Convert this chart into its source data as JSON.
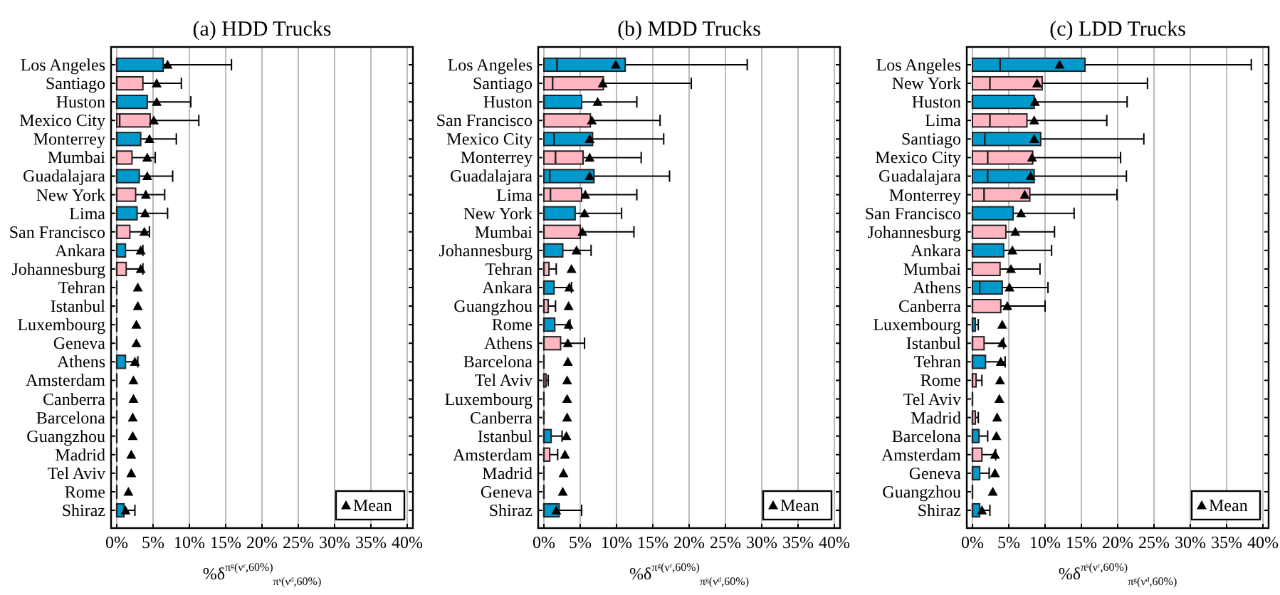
{
  "chart_data": [
    {
      "type": "box",
      "title": "(a) HDD Trucks",
      "orientation": "horizontal",
      "xlabel": "%δ$^{πᵍ(νʳ,60%)}$$_{πˢ(νᵈ,60%)}$",
      "xlim": [
        0,
        40
      ],
      "xticks": [
        {
          "value": 0,
          "label": "0%"
        },
        {
          "value": 5,
          "label": "5%"
        },
        {
          "value": 10,
          "label": "10%"
        },
        {
          "value": 15,
          "label": "15%"
        },
        {
          "value": 20,
          "label": "20%"
        },
        {
          "value": 25,
          "label": "25%"
        },
        {
          "value": 30,
          "label": "30%"
        },
        {
          "value": 35,
          "label": "35%"
        },
        {
          "value": 40,
          "label": "40%"
        }
      ],
      "grid": "x",
      "legend": "bottom right",
      "categories": [
        "Los Angeles",
        "Santiago",
        "Huston",
        "Mexico City",
        "Monterrey",
        "Mumbai",
        "Guadalajara",
        "New York",
        "Lima",
        "San Francisco",
        "Ankara",
        "Johannesburg",
        "Tehran",
        "Istanbul",
        "Luxembourg",
        "Geneva",
        "Athens",
        "Amsterdam",
        "Canberra",
        "Barcelona",
        "Guangzhou",
        "Madrid",
        "Tel Aviv",
        "Rome",
        "Shiraz"
      ],
      "series": [
        {
          "type": "box",
          "colors": [
            "#0099cc",
            "#ffb6c1",
            "#0099cc",
            "#ffb6c1",
            "#0099cc",
            "#ffb6c1",
            "#0099cc",
            "#ffb6c1",
            "#0099cc",
            "#ffb6c1",
            "#0099cc",
            "#ffb6c1",
            null,
            null,
            null,
            null,
            "#0099cc",
            null,
            null,
            null,
            null,
            null,
            null,
            null,
            "#0099cc"
          ],
          "boxes": [
            {
              "low": 0,
              "q1": 0,
              "median": 0,
              "q3": 6.4,
              "high": 15.8
            },
            {
              "low": 0,
              "q1": 0,
              "median": 0,
              "q3": 3.6,
              "high": 8.9
            },
            {
              "low": 0,
              "q1": 0,
              "median": 0,
              "q3": 4.2,
              "high": 10.2
            },
            {
              "low": 0,
              "q1": 0,
              "median": 0.4,
              "q3": 4.6,
              "high": 11.3
            },
            {
              "low": 0,
              "q1": 0,
              "median": 0,
              "q3": 3.3,
              "high": 8.2
            },
            {
              "low": 0,
              "q1": 0,
              "median": 0,
              "q3": 2.1,
              "high": 5.3
            },
            {
              "low": 0,
              "q1": 0,
              "median": 0,
              "q3": 3.1,
              "high": 7.7
            },
            {
              "low": 0,
              "q1": 0,
              "median": 0,
              "q3": 2.6,
              "high": 6.6
            },
            {
              "low": 0,
              "q1": 0,
              "median": 0,
              "q3": 2.8,
              "high": 7.0
            },
            {
              "low": 0,
              "q1": 0,
              "median": 0,
              "q3": 1.8,
              "high": 4.5
            },
            {
              "low": 0,
              "q1": 0,
              "median": 0,
              "q3": 1.2,
              "high": 3.6
            },
            {
              "low": 0,
              "q1": 0,
              "median": 0,
              "q3": 1.3,
              "high": 3.6
            },
            {
              "low": 0,
              "q1": 0,
              "median": 0,
              "q3": 0,
              "high": 0
            },
            {
              "low": 0,
              "q1": 0,
              "median": 0,
              "q3": 0,
              "high": 0
            },
            {
              "low": 0,
              "q1": 0,
              "median": 0,
              "q3": 0,
              "high": 0
            },
            {
              "low": 0,
              "q1": 0,
              "median": 0,
              "q3": 0,
              "high": 0
            },
            {
              "low": 0,
              "q1": 0,
              "median": 0,
              "q3": 1.2,
              "high": 2.9
            },
            {
              "low": 0,
              "q1": 0,
              "median": 0,
              "q3": 0,
              "high": 0
            },
            {
              "low": 0,
              "q1": 0,
              "median": 0,
              "q3": 0,
              "high": 0
            },
            {
              "low": 0,
              "q1": 0,
              "median": 0,
              "q3": 0,
              "high": 0
            },
            {
              "low": 0,
              "q1": 0,
              "median": 0,
              "q3": 0,
              "high": 0
            },
            {
              "low": 0,
              "q1": 0,
              "median": 0,
              "q3": 0,
              "high": 0
            },
            {
              "low": 0,
              "q1": 0,
              "median": 0,
              "q3": 0,
              "high": 0
            },
            {
              "low": 0,
              "q1": 0,
              "median": 0,
              "q3": 0,
              "high": 0
            },
            {
              "low": 0,
              "q1": 0,
              "median": 0,
              "q3": 1.0,
              "high": 2.5
            }
          ]
        },
        {
          "type": "scatter",
          "name": "Mean",
          "color": "#000000",
          "marker": "triangle",
          "values": [
            7.0,
            5.5,
            5.5,
            5.1,
            4.5,
            4.2,
            4.2,
            4.0,
            3.9,
            3.8,
            3.3,
            3.3,
            2.9,
            2.9,
            2.7,
            2.7,
            2.5,
            2.3,
            2.3,
            2.2,
            2.2,
            2.0,
            2.0,
            1.6,
            1.2
          ]
        }
      ]
    },
    {
      "type": "box",
      "title": "(b) MDD Trucks",
      "orientation": "horizontal",
      "xlabel": "%δ$^{πᵍ(νʳ,60%)}$$_{πᵍ(νᵈ,60%)}$",
      "xlim": [
        0,
        40
      ],
      "xticks": [
        {
          "value": 0,
          "label": "0%"
        },
        {
          "value": 5,
          "label": "5%"
        },
        {
          "value": 10,
          "label": "10%"
        },
        {
          "value": 15,
          "label": "15%"
        },
        {
          "value": 20,
          "label": "20%"
        },
        {
          "value": 25,
          "label": "25%"
        },
        {
          "value": 30,
          "label": "30%"
        },
        {
          "value": 35,
          "label": "35%"
        },
        {
          "value": 40,
          "label": "40%"
        }
      ],
      "grid": "x",
      "legend": "bottom right",
      "categories": [
        "Los Angeles",
        "Santiago",
        "Huston",
        "San Francisco",
        "Mexico City",
        "Monterrey",
        "Guadalajara",
        "Lima",
        "New York",
        "Mumbai",
        "Johannesburg",
        "Tehran",
        "Ankara",
        "Guangzhou",
        "Rome",
        "Athens",
        "Barcelona",
        "Tel Aviv",
        "Luxembourg",
        "Canberra",
        "Istanbul",
        "Amsterdam",
        "Madrid",
        "Geneva",
        "Shiraz"
      ],
      "series": [
        {
          "type": "box",
          "colors": [
            "#0099cc",
            "#ffb6c1",
            "#0099cc",
            "#ffb6c1",
            "#0099cc",
            "#ffb6c1",
            "#0099cc",
            "#ffb6c1",
            "#0099cc",
            "#ffb6c1",
            "#0099cc",
            "#ffb6c1",
            "#0099cc",
            "#ffb6c1",
            "#0099cc",
            "#ffb6c1",
            null,
            "#ffb6c1",
            null,
            null,
            "#0099cc",
            "#ffb6c1",
            null,
            null,
            "#0099cc"
          ],
          "boxes": [
            {
              "low": 0,
              "q1": 0,
              "median": 1.8,
              "q3": 11.2,
              "high": 28.0
            },
            {
              "low": 0,
              "q1": 0,
              "median": 1.2,
              "q3": 8.2,
              "high": 20.3
            },
            {
              "low": 0,
              "q1": 0,
              "median": 0,
              "q3": 5.2,
              "high": 12.8
            },
            {
              "low": 0,
              "q1": 0,
              "median": 0,
              "q3": 6.4,
              "high": 16.0
            },
            {
              "low": 0,
              "q1": 0,
              "median": 1.4,
              "q3": 6.7,
              "high": 16.5
            },
            {
              "low": 0,
              "q1": 0,
              "median": 1.6,
              "q3": 5.4,
              "high": 13.4
            },
            {
              "low": 0,
              "q1": 0,
              "median": 0.8,
              "q3": 6.9,
              "high": 17.3
            },
            {
              "low": 0,
              "q1": 0,
              "median": 0.9,
              "q3": 5.2,
              "high": 12.8
            },
            {
              "low": 0,
              "q1": 0,
              "median": 0,
              "q3": 4.3,
              "high": 10.7
            },
            {
              "low": 0,
              "q1": 0,
              "median": 0,
              "q3": 5.0,
              "high": 12.4
            },
            {
              "low": 0,
              "q1": 0,
              "median": 0,
              "q3": 2.6,
              "high": 6.5
            },
            {
              "low": 0,
              "q1": 0,
              "median": 0,
              "q3": 0.7,
              "high": 1.7
            },
            {
              "low": 0,
              "q1": 0,
              "median": 0,
              "q3": 1.4,
              "high": 3.8
            },
            {
              "low": 0,
              "q1": 0,
              "median": 0,
              "q3": 0.6,
              "high": 1.6
            },
            {
              "low": 0,
              "q1": 0,
              "median": 0,
              "q3": 1.5,
              "high": 3.6
            },
            {
              "low": 0,
              "q1": 0,
              "median": 0,
              "q3": 2.3,
              "high": 5.6
            },
            {
              "low": 0,
              "q1": 0,
              "median": 0,
              "q3": 0,
              "high": 0
            },
            {
              "low": 0,
              "q1": 0,
              "median": 0,
              "q3": 0.3,
              "high": 0.6
            },
            {
              "low": 0,
              "q1": 0,
              "median": 0,
              "q3": 0,
              "high": 0
            },
            {
              "low": 0,
              "q1": 0,
              "median": 0,
              "q3": 0,
              "high": 0
            },
            {
              "low": 0,
              "q1": 0,
              "median": 0,
              "q3": 1.0,
              "high": 2.5
            },
            {
              "low": 0,
              "q1": 0,
              "median": 0,
              "q3": 0.8,
              "high": 1.9
            },
            {
              "low": 0,
              "q1": 0,
              "median": 0,
              "q3": 0,
              "high": 0
            },
            {
              "low": 0,
              "q1": 0,
              "median": 0,
              "q3": 0,
              "high": 0
            },
            {
              "low": 0,
              "q1": 0,
              "median": 0,
              "q3": 2.1,
              "high": 5.2
            }
          ]
        },
        {
          "type": "scatter",
          "name": "Mean",
          "color": "#000000",
          "marker": "triangle",
          "values": [
            9.9,
            8.1,
            7.4,
            6.6,
            6.3,
            6.3,
            6.3,
            5.7,
            5.6,
            5.3,
            4.5,
            3.8,
            3.5,
            3.4,
            3.4,
            3.3,
            3.3,
            3.2,
            3.2,
            3.2,
            3.1,
            2.9,
            2.7,
            2.6,
            1.7
          ]
        }
      ]
    },
    {
      "type": "box",
      "title": "(c) LDD Trucks",
      "orientation": "horizontal",
      "xlabel": "%δ$^{πˢ(νʳ,60%)}$$_{πᵍ(νᵈ,60%)}$",
      "xlim": [
        0,
        40
      ],
      "xticks": [
        {
          "value": 0,
          "label": "0%"
        },
        {
          "value": 5,
          "label": "5%"
        },
        {
          "value": 10,
          "label": "10%"
        },
        {
          "value": 15,
          "label": "15%"
        },
        {
          "value": 20,
          "label": "20%"
        },
        {
          "value": 25,
          "label": "25%"
        },
        {
          "value": 30,
          "label": "30%"
        },
        {
          "value": 35,
          "label": "35%"
        },
        {
          "value": 40,
          "label": "40%"
        }
      ],
      "grid": "x",
      "legend": "bottom right",
      "categories": [
        "Los Angeles",
        "New York",
        "Huston",
        "Lima",
        "Santiago",
        "Mexico City",
        "Guadalajara",
        "Monterrey",
        "San Francisco",
        "Johannesburg",
        "Ankara",
        "Mumbai",
        "Athens",
        "Canberra",
        "Luxembourg",
        "Istanbul",
        "Tehran",
        "Rome",
        "Tel Aviv",
        "Madrid",
        "Barcelona",
        "Amsterdam",
        "Geneva",
        "Guangzhou",
        "Shiraz"
      ],
      "series": [
        {
          "type": "box",
          "colors": [
            "#0099cc",
            "#ffb6c1",
            "#0099cc",
            "#ffb6c1",
            "#0099cc",
            "#ffb6c1",
            "#0099cc",
            "#ffb6c1",
            "#0099cc",
            "#ffb6c1",
            "#0099cc",
            "#ffb6c1",
            "#0099cc",
            "#ffb6c1",
            "#0099cc",
            "#ffb6c1",
            "#0099cc",
            "#ffb6c1",
            null,
            "#ffb6c1",
            "#0099cc",
            "#ffb6c1",
            "#0099cc",
            null,
            "#0099cc"
          ],
          "boxes": [
            {
              "low": 0,
              "q1": 0,
              "median": 3.8,
              "q3": 15.5,
              "high": 38.4
            },
            {
              "low": 0,
              "q1": 0,
              "median": 2.4,
              "q3": 9.6,
              "high": 24.1
            },
            {
              "low": 0,
              "q1": 0,
              "median": 0,
              "q3": 8.5,
              "high": 21.3
            },
            {
              "low": 0,
              "q1": 0,
              "median": 2.4,
              "q3": 7.5,
              "high": 18.5
            },
            {
              "low": 0,
              "q1": 0,
              "median": 1.7,
              "q3": 9.4,
              "high": 23.6
            },
            {
              "low": 0,
              "q1": 0,
              "median": 2.1,
              "q3": 8.3,
              "high": 20.4
            },
            {
              "low": 0,
              "q1": 0,
              "median": 2.1,
              "q3": 8.5,
              "high": 21.2
            },
            {
              "low": 0,
              "q1": 0,
              "median": 1.6,
              "q3": 7.9,
              "high": 19.9
            },
            {
              "low": 0,
              "q1": 0,
              "median": 0,
              "q3": 5.6,
              "high": 14.0
            },
            {
              "low": 0,
              "q1": 0,
              "median": 0,
              "q3": 4.6,
              "high": 11.3
            },
            {
              "low": 0,
              "q1": 0,
              "median": 0,
              "q3": 4.3,
              "high": 10.9
            },
            {
              "low": 0,
              "q1": 0,
              "median": 0,
              "q3": 3.8,
              "high": 9.3
            },
            {
              "low": 0,
              "q1": 0,
              "median": 1.0,
              "q3": 4.1,
              "high": 10.4
            },
            {
              "low": 0,
              "q1": 0,
              "median": 0,
              "q3": 3.9,
              "high": 10.0
            },
            {
              "low": 0,
              "q1": 0,
              "median": 0,
              "q3": 0.4,
              "high": 0.8
            },
            {
              "low": 0,
              "q1": 0,
              "median": 0,
              "q3": 1.6,
              "high": 4.3
            },
            {
              "low": 0,
              "q1": 0,
              "median": 0,
              "q3": 1.8,
              "high": 4.5
            },
            {
              "low": 0,
              "q1": 0,
              "median": 0,
              "q3": 0.5,
              "high": 1.3
            },
            {
              "low": 0,
              "q1": 0,
              "median": 0,
              "q3": 0,
              "high": 0
            },
            {
              "low": 0,
              "q1": 0,
              "median": 0,
              "q3": 0.4,
              "high": 0.8
            },
            {
              "low": 0,
              "q1": 0,
              "median": 0,
              "q3": 0.9,
              "high": 2.1
            },
            {
              "low": 0,
              "q1": 0,
              "median": 0,
              "q3": 1.3,
              "high": 3.2
            },
            {
              "low": 0,
              "q1": 0,
              "median": 0,
              "q3": 1.0,
              "high": 2.3
            },
            {
              "low": 0,
              "q1": 0,
              "median": 0,
              "q3": 0,
              "high": 0
            },
            {
              "low": 0,
              "q1": 0,
              "median": 0,
              "q3": 1.0,
              "high": 2.4
            }
          ]
        },
        {
          "type": "scatter",
          "name": "Mean",
          "color": "#000000",
          "marker": "triangle",
          "values": [
            12.0,
            8.9,
            8.6,
            8.5,
            8.5,
            8.2,
            8.0,
            7.2,
            6.7,
            5.9,
            5.5,
            5.3,
            5.1,
            4.8,
            4.1,
            4.1,
            3.9,
            3.8,
            3.7,
            3.4,
            3.3,
            3.1,
            3.1,
            2.8,
            1.3
          ]
        }
      ]
    }
  ]
}
